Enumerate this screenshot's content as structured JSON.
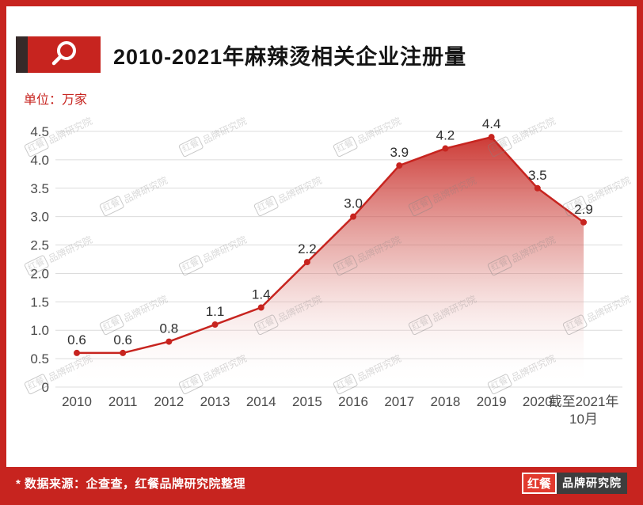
{
  "colors": {
    "accent": "#c7241f",
    "grid": "#dcdcdc",
    "axis_text": "#4a4a4a",
    "title_text": "#141414"
  },
  "header": {
    "title": "2010-2021年麻辣烫相关企业注册量",
    "unit_label": "单位：万家"
  },
  "chart_data": {
    "type": "area",
    "title": "2010-2021年麻辣烫相关企业注册量",
    "unit": "万家",
    "categories": [
      "2010",
      "2011",
      "2012",
      "2013",
      "2014",
      "2015",
      "2016",
      "2017",
      "2018",
      "2019",
      "2020",
      "截至2021年10月"
    ],
    "values": [
      0.6,
      0.6,
      0.8,
      1.1,
      1.4,
      2.2,
      3.0,
      3.9,
      4.2,
      4.4,
      3.5,
      2.9
    ],
    "ylim": [
      0,
      4.5
    ],
    "ytick_step": 0.5,
    "grid": true,
    "legend": "none",
    "line_color": "#c7241f",
    "point_labels": true
  },
  "watermark": {
    "logo": "红餐",
    "text": "品牌研究院"
  },
  "footer": {
    "source": "* 数据来源：企查查，红餐品牌研究院整理",
    "logo_primary": "红餐",
    "logo_secondary": "品牌研究院"
  }
}
